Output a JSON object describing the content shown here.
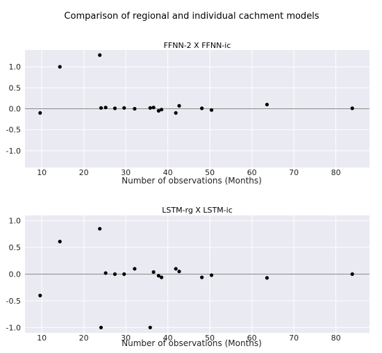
{
  "figure": {
    "title": "Comparison of regional and individual cachment models"
  },
  "chart_data": [
    {
      "type": "scatter",
      "title": "FFNN-2 X FFNN-ic",
      "xlabel": "Number of observations (Months)",
      "ylabel": "",
      "xlim": [
        6,
        88
      ],
      "ylim": [
        -1.4,
        1.4
      ],
      "xticks": [
        10,
        20,
        30,
        40,
        50,
        60,
        70,
        80
      ],
      "yticks": [
        1.0,
        0.5,
        0.0,
        -0.5,
        -1.0
      ],
      "ytick_labels": [
        "1.0",
        "0.5",
        "0.0",
        "-0.5",
        "-1.0"
      ],
      "grid": true,
      "reference_line_y": 0.0,
      "x": [
        9.6,
        14.3,
        23.8,
        24.1,
        25.2,
        27.4,
        29.6,
        32.1,
        35.8,
        36.6,
        37.8,
        38.5,
        41.9,
        42.7,
        48.1,
        50.4,
        63.6,
        83.9
      ],
      "y": [
        -0.1,
        1.0,
        1.28,
        0.02,
        0.03,
        0.01,
        0.02,
        0.0,
        0.02,
        0.03,
        -0.05,
        -0.02,
        -0.1,
        0.07,
        0.01,
        -0.03,
        0.1,
        0.01
      ]
    },
    {
      "type": "scatter",
      "title": "LSTM-rg X LSTM-ic",
      "xlabel": "Number of observations (Months)",
      "ylabel": "",
      "xlim": [
        6,
        88
      ],
      "ylim": [
        -1.1,
        1.1
      ],
      "xticks": [
        10,
        20,
        30,
        40,
        50,
        60,
        70,
        80
      ],
      "yticks": [
        1.0,
        0.5,
        0.0,
        -0.5,
        -1.0
      ],
      "ytick_labels": [
        "1.0",
        "0.5",
        "0.0",
        "-0.5",
        "-1.0"
      ],
      "grid": true,
      "reference_line_y": 0.0,
      "x": [
        9.6,
        14.3,
        23.8,
        24.1,
        25.2,
        27.4,
        29.6,
        32.1,
        35.8,
        36.6,
        37.8,
        38.5,
        41.9,
        42.7,
        48.1,
        50.4,
        63.6,
        83.9
      ],
      "y": [
        -0.4,
        0.61,
        0.85,
        -1.0,
        0.02,
        0.0,
        0.0,
        0.1,
        -1.0,
        0.04,
        -0.03,
        -0.06,
        0.1,
        0.05,
        -0.06,
        -0.02,
        -0.07,
        0.0
      ]
    }
  ]
}
